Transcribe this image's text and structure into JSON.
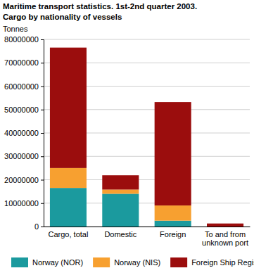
{
  "chart_data": {
    "type": "bar",
    "stacked": true,
    "title": "Maritime transport statistics. 1st-2nd quarter 2003.",
    "subtitle": "Cargo by nationality of vessels",
    "y_label": "Tonnes",
    "categories": [
      "Cargo, total",
      "Domestic",
      "Foreign",
      "To and from unknown port"
    ],
    "series": [
      {
        "name": "Norway (NOR)",
        "color": "#1b9a9e",
        "values": [
          16500000,
          14000000,
          2500000,
          0
        ]
      },
      {
        "name": "Norway (NIS)",
        "color": "#f7a030",
        "values": [
          8500000,
          1800000,
          6500000,
          0
        ]
      },
      {
        "name": "Foreign Ship Registers",
        "color": "#9b0d0d",
        "values": [
          51500000,
          6100000,
          44200000,
          1300000
        ]
      }
    ],
    "ylim": [
      0,
      80000000
    ],
    "yticks": [
      0,
      10000000,
      20000000,
      30000000,
      40000000,
      50000000,
      60000000,
      70000000,
      80000000
    ],
    "grid": true,
    "legend": "bottom"
  }
}
